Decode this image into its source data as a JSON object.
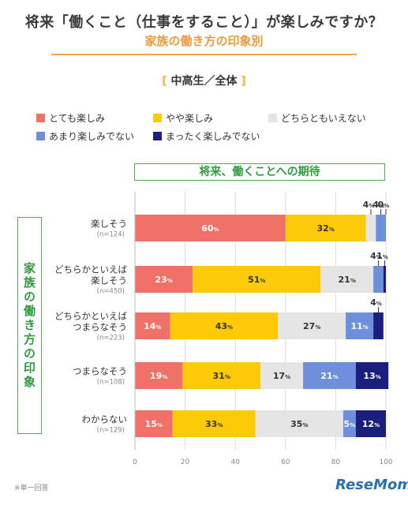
{
  "title": "将来「働くこと（仕事をすること）」が楽しみですか？",
  "subtitle": "家族の働き方の印象別",
  "scope_label": "中高生／全体",
  "section_header": "将来、働くことへの期待",
  "side_label": "家族の働き方の印象",
  "footnote": "※単一回答",
  "brand": "ReseMom",
  "legend": [
    {
      "label": "とても楽しみ",
      "color": "#f07168"
    },
    {
      "label": "やや楽しみ",
      "color": "#fbcb0a"
    },
    {
      "label": "どちらともいえない",
      "color": "#e5e5e5"
    },
    {
      "label": "あまり楽しみでない",
      "color": "#6d8fdc"
    },
    {
      "label": "まったく楽しみでない",
      "color": "#1a1f7e"
    }
  ],
  "chart_data": {
    "type": "bar",
    "orientation": "horizontal",
    "stacked": true,
    "xlim": [
      0,
      100
    ],
    "x_ticks": [
      "0",
      "20",
      "40",
      "60",
      "80",
      "100"
    ],
    "value_suffix": "%",
    "categories": [
      {
        "label": [
          "楽しそう"
        ],
        "n": "(n=124)"
      },
      {
        "label": [
          "どちらかといえば",
          "楽しそう"
        ],
        "n": "(n=450)"
      },
      {
        "label": [
          "どちらかといえば",
          "つまらなそう"
        ],
        "n": "(n=223)"
      },
      {
        "label": [
          "つまらなそう"
        ],
        "n": "(n=108)"
      },
      {
        "label": [
          "わからない"
        ],
        "n": "(n=129)"
      }
    ],
    "series": [
      {
        "name": "とても楽しみ",
        "color": "#f07168",
        "label_color": "#ffffff",
        "values": [
          60,
          23,
          14,
          19,
          15
        ]
      },
      {
        "name": "やや楽しみ",
        "color": "#fbcb0a",
        "label_color": "#333333",
        "values": [
          32,
          51,
          43,
          31,
          33
        ]
      },
      {
        "name": "どちらともいえない",
        "color": "#e5e5e5",
        "label_color": "#333333",
        "values": [
          4,
          21,
          27,
          17,
          35
        ]
      },
      {
        "name": "あまり楽しみでない",
        "color": "#6d8fdc",
        "label_color": "#ffffff",
        "values": [
          4,
          4,
          11,
          21,
          5
        ]
      },
      {
        "name": "まったく楽しみでない",
        "color": "#1a1f7e",
        "label_color": "#ffffff",
        "values": [
          0,
          1,
          4,
          13,
          12
        ]
      }
    ]
  }
}
